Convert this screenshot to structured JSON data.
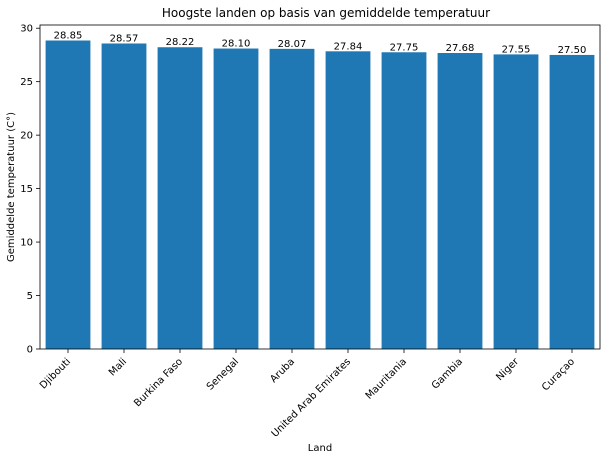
{
  "chart_data": {
    "type": "bar",
    "title": "Hoogste landen op basis van gemiddelde temperatuur",
    "xlabel": "Land",
    "ylabel": "Gemiddelde temperatuur (C°)",
    "categories": [
      "Djibouti",
      "Mali",
      "Burkina Faso",
      "Senegal",
      "Aruba",
      "United Arab Emirates",
      "Mauritania",
      "Gambia",
      "Niger",
      "Curaçao"
    ],
    "values": [
      28.85,
      28.57,
      28.22,
      28.1,
      28.07,
      27.84,
      27.75,
      27.68,
      27.55,
      27.5
    ],
    "value_labels": [
      "28.85",
      "28.57",
      "28.22",
      "28.10",
      "28.07",
      "27.84",
      "27.75",
      "27.68",
      "27.55",
      "27.50"
    ],
    "ylim": [
      0,
      30.3
    ],
    "yticks": [
      0,
      5,
      10,
      15,
      20,
      25,
      30
    ],
    "bar_color": "#1f77b4",
    "grid": false,
    "legend": "none"
  }
}
